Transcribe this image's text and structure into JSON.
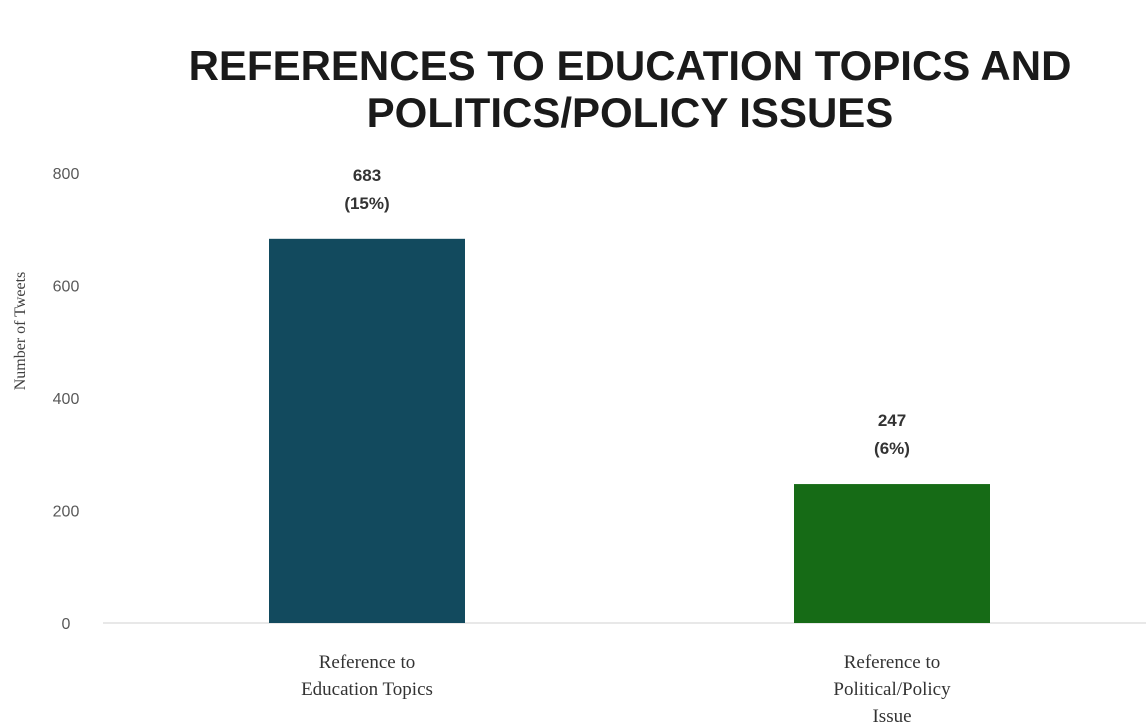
{
  "chart_data": {
    "type": "bar",
    "title_lines": [
      "REFERENCES TO EDUCATION TOPICS AND",
      "POLITICS/POLICY ISSUES"
    ],
    "ylabel": "Number of Tweets",
    "xlabel": "",
    "ylim": [
      0,
      800
    ],
    "yticks": [
      "0",
      "200",
      "400",
      "600",
      "800"
    ],
    "categories": [
      [
        "Reference to",
        "Education Topics"
      ],
      [
        "Reference to",
        "Political/Policy",
        "Issue"
      ]
    ],
    "values": [
      683,
      247
    ],
    "data_labels": [
      [
        "683",
        "(15%)"
      ],
      [
        "247",
        "(6%)"
      ]
    ],
    "colors": [
      "#124a5e",
      "#166b16"
    ],
    "grid": false,
    "legend": "none"
  }
}
